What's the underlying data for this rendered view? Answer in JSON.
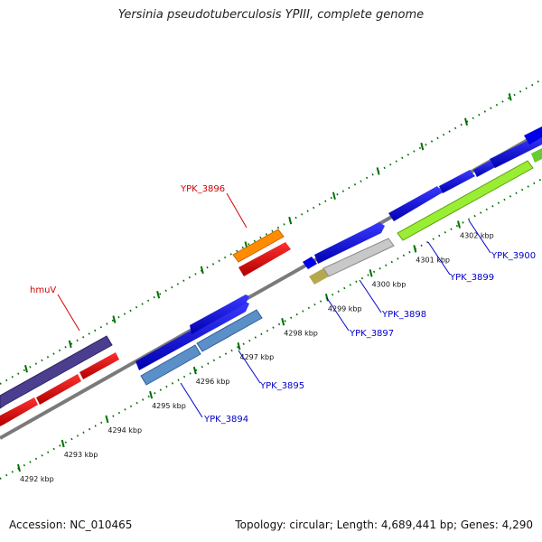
{
  "header": {
    "title": "Yersinia pseudotuberculosis YPIII, complete genome"
  },
  "footer": {
    "accession": "Accession: NC_010465",
    "summary": "Topology: circular; Length: 4,689,441 bp; Genes: 4,290"
  },
  "colors": {
    "backbone": "#808080",
    "tick": "#007000",
    "forward_cds": "#0000e8",
    "reverse_cds": "#e80000",
    "highlight_orange": "#ff8c00",
    "lime": "#99ee33",
    "steel_blue": "#5b8fc8",
    "purple": "#4b3e8f",
    "light_gray": "#c8c8c8",
    "olive": "#b5a84e"
  },
  "ticks": {
    "labels": [
      "4292 kbp",
      "4293 kbp",
      "4294 kbp",
      "4295 kbp",
      "4296 kbp",
      "4297 kbp",
      "4298 kbp",
      "4299 kbp",
      "4300 kbp",
      "4301 kbp",
      "4302 kbp"
    ]
  },
  "genes": {
    "red_labels": [
      "YPK_3896",
      "hmuV"
    ],
    "blue_labels": [
      "YPK_3894",
      "YPK_3895",
      "YPK_3897",
      "YPK_3898",
      "YPK_3899",
      "YPK_3900"
    ]
  }
}
